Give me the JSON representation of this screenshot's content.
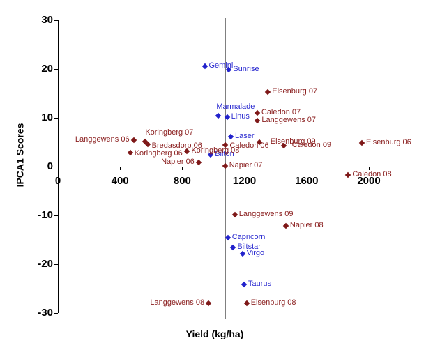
{
  "chart_data": {
    "type": "scatter",
    "title": "",
    "xlabel": "Yield (kg/ha)",
    "ylabel": "IPCA1 Scores",
    "xlim": [
      0,
      2020
    ],
    "ylim": [
      -30,
      30
    ],
    "x_ticks": [
      0,
      400,
      800,
      1200,
      1600,
      2000
    ],
    "y_ticks": [
      30,
      20,
      10,
      0,
      -10,
      -20,
      -30
    ],
    "grid": false,
    "legend": false,
    "reference_line": {
      "axis": "x",
      "value": 1080,
      "color": "#808080"
    },
    "colors": {
      "genotype_marker": "#2222CC",
      "genotype_label": "#2B2BD0",
      "environment_marker": "#7E1818",
      "environment_label": "#8B2020",
      "axis": "#000000"
    },
    "series": [
      {
        "name": "genotypes",
        "marker": "diamond",
        "color_key": "genotype",
        "points": [
          {
            "label": "Gemini",
            "x": 944,
            "y": 20.6,
            "label_pos": "right"
          },
          {
            "label": "Sunrise",
            "x": 1100,
            "y": 19.8,
            "label_pos": "right"
          },
          {
            "label": "Marmalade",
            "x": 1033,
            "y": 10.4,
            "label_pos": "above"
          },
          {
            "label": "Linus",
            "x": 1088,
            "y": 10.2,
            "label_pos": "right"
          },
          {
            "label": "Laser",
            "x": 1112,
            "y": 6.1,
            "label_pos": "right"
          },
          {
            "label": "Bilton",
            "x": 983,
            "y": 2.5,
            "label_pos": "right"
          },
          {
            "label": "Capricorn",
            "x": 1093,
            "y": -14.6,
            "label_pos": "right"
          },
          {
            "label": "Biltstar",
            "x": 1127,
            "y": -16.5,
            "label_pos": "right"
          },
          {
            "label": "Virgo",
            "x": 1187,
            "y": -17.9,
            "label_pos": "right"
          },
          {
            "label": "Taurus",
            "x": 1197,
            "y": -24.2,
            "label_pos": "right"
          }
        ]
      },
      {
        "name": "environments",
        "marker": "diamond",
        "color_key": "environment",
        "points": [
          {
            "label": "Langgewens 06",
            "x": 487,
            "y": 5.5,
            "label_pos": "left"
          },
          {
            "label": "Koringberg 07",
            "x": 562,
            "y": 5.2,
            "label_pos": "above",
            "dx": 3
          },
          {
            "label": "Bredasdorp 06",
            "x": 577,
            "y": 4.6,
            "label_pos": "right",
            "dy": 3
          },
          {
            "label": "Koringberg 06",
            "x": 465,
            "y": 2.8,
            "label_pos": "right",
            "dy": 2
          },
          {
            "label": "Napier 06",
            "x": 905,
            "y": 0.8,
            "label_pos": "left"
          },
          {
            "label": "Koringberg 08",
            "x": 831,
            "y": 3.1,
            "label_pos": "right"
          },
          {
            "label": "Caledon 06",
            "x": 1078,
            "y": 4.5,
            "label_pos": "right",
            "dy": 2
          },
          {
            "label": "Elsenburg 09",
            "x": 1295,
            "y": 5.0,
            "label_pos": "right",
            "dx": 10
          },
          {
            "label": "Caledon 09",
            "x": 1452,
            "y": 4.3,
            "label_pos": "right",
            "dx": 6
          },
          {
            "label": "Elsenburg 06",
            "x": 1955,
            "y": 4.8,
            "label_pos": "right"
          },
          {
            "label": "Caledon 08",
            "x": 1867,
            "y": -1.7,
            "label_pos": "right"
          },
          {
            "label": "Napier 07",
            "x": 1075,
            "y": 0.1,
            "label_pos": "right"
          },
          {
            "label": "Elsenburg 07",
            "x": 1351,
            "y": 15.3,
            "label_pos": "right"
          },
          {
            "label": "Caledon 07",
            "x": 1282,
            "y": 11.0,
            "label_pos": "right"
          },
          {
            "label": "Langgewens 07",
            "x": 1284,
            "y": 9.4,
            "label_pos": "right"
          },
          {
            "label": "Langgewens 09",
            "x": 1138,
            "y": -9.8,
            "label_pos": "right"
          },
          {
            "label": "Napier 08",
            "x": 1466,
            "y": -12.2,
            "label_pos": "right"
          },
          {
            "label": "Langgewens 08",
            "x": 969,
            "y": -28.0,
            "label_pos": "left"
          },
          {
            "label": "Elsenburg 08",
            "x": 1214,
            "y": -28.0,
            "label_pos": "right"
          }
        ]
      }
    ]
  }
}
